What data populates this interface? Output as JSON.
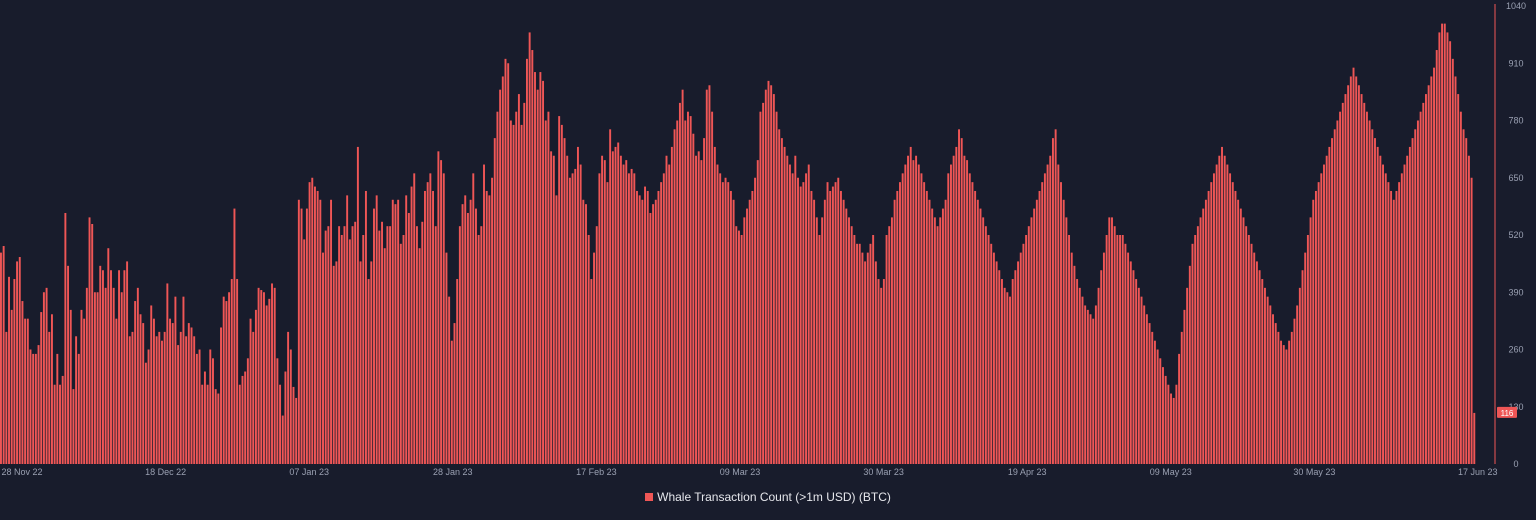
{
  "chart_data": {
    "type": "bar",
    "series": [
      {
        "name": "Whale Transaction Count (>1m USD) (BTC)",
        "color": "#ef5656",
        "values": [
          480,
          495,
          300,
          425,
          350,
          420,
          460,
          470,
          370,
          330,
          330,
          260,
          250,
          250,
          270,
          345,
          390,
          400,
          300,
          340,
          180,
          250,
          180,
          200,
          570,
          450,
          350,
          170,
          290,
          250,
          350,
          330,
          400,
          560,
          545,
          390,
          390,
          450,
          440,
          400,
          490,
          440,
          400,
          330,
          440,
          390,
          440,
          460,
          290,
          300,
          370,
          400,
          340,
          320,
          230,
          260,
          360,
          330,
          290,
          300,
          280,
          300,
          410,
          330,
          320,
          380,
          270,
          300,
          380,
          290,
          320,
          310,
          290,
          250,
          260,
          180,
          210,
          180,
          260,
          240,
          170,
          160,
          310,
          380,
          370,
          390,
          420,
          580,
          420,
          180,
          200,
          210,
          240,
          330,
          300,
          350,
          400,
          395,
          390,
          360,
          375,
          410,
          400,
          240,
          180,
          110,
          210,
          300,
          260,
          175,
          150,
          600,
          580,
          510,
          580,
          640,
          650,
          630,
          620,
          600,
          480,
          530,
          540,
          600,
          450,
          460,
          540,
          520,
          540,
          610,
          510,
          540,
          550,
          720,
          460,
          520,
          620,
          420,
          460,
          580,
          610,
          530,
          550,
          490,
          540,
          540,
          600,
          590,
          600,
          500,
          520,
          610,
          570,
          630,
          660,
          540,
          490,
          550,
          620,
          640,
          660,
          620,
          540,
          710,
          690,
          660,
          480,
          380,
          280,
          320,
          420,
          540,
          590,
          610,
          570,
          600,
          660,
          580,
          520,
          540,
          680,
          620,
          610,
          650,
          740,
          800,
          850,
          880,
          920,
          910,
          780,
          770,
          800,
          840,
          770,
          820,
          920,
          980,
          940,
          890,
          850,
          890,
          870,
          780,
          800,
          710,
          700,
          610,
          790,
          770,
          740,
          700,
          650,
          660,
          670,
          720,
          680,
          600,
          590,
          520,
          420,
          480,
          540,
          660,
          700,
          690,
          640,
          760,
          710,
          720,
          730,
          700,
          680,
          690,
          660,
          670,
          660,
          620,
          610,
          600,
          630,
          620,
          570,
          590,
          600,
          620,
          640,
          660,
          700,
          680,
          720,
          760,
          780,
          820,
          850,
          780,
          800,
          790,
          750,
          700,
          710,
          690,
          740,
          850,
          860,
          800,
          720,
          680,
          660,
          640,
          650,
          640,
          620,
          600,
          540,
          530,
          520,
          560,
          580,
          600,
          620,
          650,
          690,
          800,
          820,
          850,
          870,
          860,
          840,
          800,
          760,
          740,
          720,
          700,
          680,
          660,
          700,
          650,
          630,
          640,
          660,
          680,
          620,
          600,
          560,
          520,
          560,
          600,
          640,
          620,
          630,
          640,
          650,
          620,
          600,
          580,
          560,
          540,
          520,
          500,
          500,
          480,
          460,
          480,
          500,
          520,
          460,
          420,
          400,
          420,
          520,
          540,
          560,
          600,
          620,
          640,
          660,
          680,
          700,
          720,
          690,
          700,
          680,
          660,
          640,
          620,
          600,
          580,
          560,
          540,
          560,
          580,
          600,
          660,
          680,
          700,
          720,
          760,
          740,
          700,
          690,
          660,
          640,
          620,
          600,
          580,
          560,
          540,
          520,
          500,
          480,
          460,
          440,
          420,
          400,
          390,
          380,
          420,
          440,
          460,
          480,
          500,
          520,
          540,
          560,
          580,
          600,
          620,
          640,
          660,
          680,
          700,
          740,
          760,
          680,
          640,
          600,
          560,
          520,
          480,
          450,
          420,
          400,
          380,
          360,
          350,
          340,
          330,
          360,
          400,
          440,
          480,
          520,
          560,
          560,
          540,
          520,
          520,
          520,
          500,
          480,
          460,
          440,
          420,
          400,
          380,
          360,
          340,
          320,
          300,
          280,
          260,
          240,
          220,
          200,
          180,
          160,
          150,
          180,
          250,
          300,
          350,
          400,
          450,
          500,
          520,
          540,
          560,
          580,
          600,
          620,
          640,
          660,
          680,
          700,
          720,
          700,
          680,
          660,
          640,
          620,
          600,
          580,
          560,
          540,
          520,
          500,
          480,
          460,
          440,
          420,
          400,
          380,
          360,
          340,
          320,
          300,
          280,
          270,
          260,
          280,
          300,
          330,
          360,
          400,
          440,
          480,
          520,
          560,
          600,
          620,
          640,
          660,
          680,
          700,
          720,
          740,
          760,
          780,
          800,
          820,
          840,
          860,
          880,
          900,
          880,
          860,
          840,
          820,
          800,
          780,
          760,
          740,
          720,
          700,
          680,
          660,
          640,
          620,
          600,
          620,
          640,
          660,
          680,
          700,
          720,
          740,
          760,
          780,
          800,
          820,
          840,
          860,
          880,
          900,
          940,
          980,
          1000,
          1000,
          980,
          960,
          920,
          880,
          840,
          800,
          760,
          740,
          700,
          650,
          116
        ]
      }
    ],
    "x_tick_labels": [
      "28 Nov 22",
      "18 Dec 22",
      "07 Jan 23",
      "28 Jan 23",
      "17 Feb 23",
      "09 Mar 23",
      "30 Mar 23",
      "19 Apr 23",
      "09 May 23",
      "30 May 23",
      "17 Jun 23"
    ],
    "y_tick_labels": [
      "0",
      "130",
      "260",
      "390",
      "520",
      "650",
      "780",
      "910",
      "1040"
    ],
    "ylim": [
      0,
      1040
    ],
    "last_value_label": "116",
    "grid": false,
    "legend_position": "bottom-center"
  },
  "legend": {
    "label": "Whale Transaction Count (>1m USD) (BTC)"
  },
  "colors": {
    "background": "#181c2c",
    "bar": "#ef5656",
    "axis_text": "#9aa0b2"
  }
}
